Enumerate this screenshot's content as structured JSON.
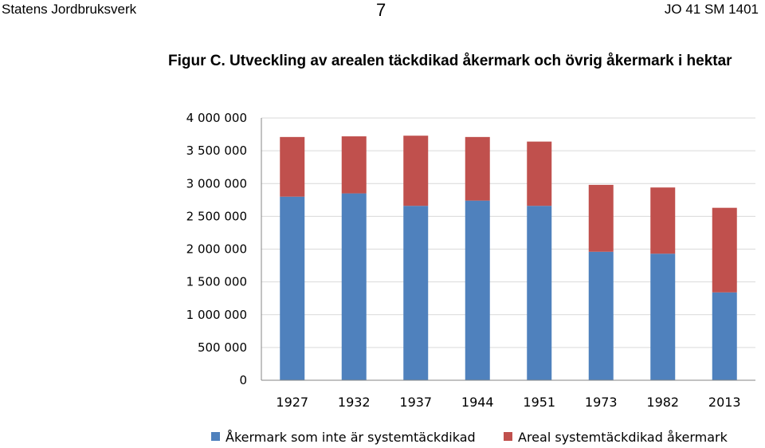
{
  "header": {
    "left": "Statens Jordbruksverk",
    "center": "7",
    "right": "JO 41 SM 1401"
  },
  "chart_data": {
    "type": "bar",
    "stacked": true,
    "title": "Figur C. Utveckling av arealen täckdikad åkermark och övrig åkermark i hektar",
    "categories": [
      "1927",
      "1932",
      "1937",
      "1944",
      "1951",
      "1973",
      "1982",
      "2013"
    ],
    "series": [
      {
        "name": "Åkermark som inte är systemtäckdikad",
        "color": "#4f81bd",
        "values": [
          2800000,
          2850000,
          2660000,
          2740000,
          2660000,
          1960000,
          1930000,
          1340000
        ]
      },
      {
        "name": "Areal systemtäckdikad åkermark",
        "color": "#c0504d",
        "values": [
          910000,
          870000,
          1070000,
          970000,
          980000,
          1020000,
          1010000,
          1290000
        ]
      }
    ],
    "ylim": [
      0,
      4000000
    ],
    "yticks": [
      0,
      500000,
      1000000,
      1500000,
      2000000,
      2500000,
      3000000,
      3500000,
      4000000
    ],
    "ytick_labels": [
      "0",
      "500 000",
      "1 000 000",
      "1 500 000",
      "2 000 000",
      "2 500 000",
      "3 000 000",
      "3 500 000",
      "4 000 000"
    ],
    "grid": true,
    "legend": "bottom"
  }
}
